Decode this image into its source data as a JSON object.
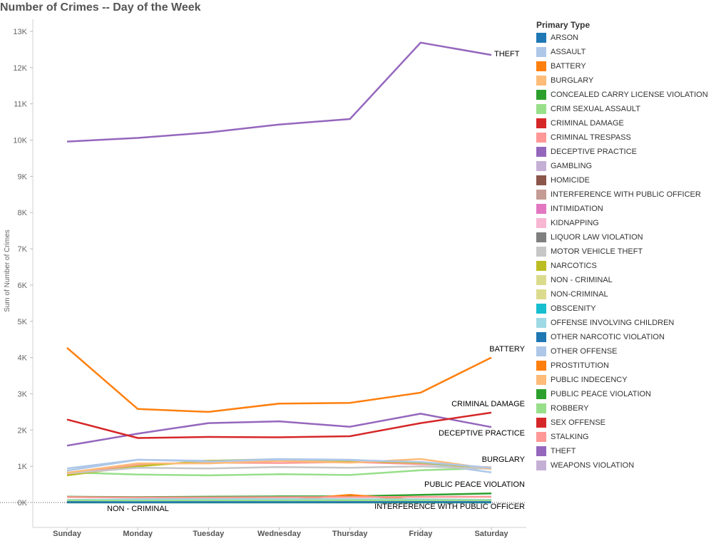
{
  "title": "Number of Crimes -- Day of the Week",
  "legend_title": "Primary Type",
  "chart_data": {
    "type": "line",
    "title": "Number of Crimes -- Day of the Week",
    "xlabel": "",
    "ylabel": "Sum of Number of Crimes",
    "ylim": [
      0,
      13000
    ],
    "yticks": [
      0,
      1000,
      2000,
      3000,
      4000,
      5000,
      6000,
      7000,
      8000,
      9000,
      10000,
      11000,
      12000,
      13000
    ],
    "ytick_labels": [
      "0K",
      "1K",
      "2K",
      "3K",
      "4K",
      "5K",
      "6K",
      "7K",
      "8K",
      "9K",
      "10K",
      "11K",
      "12K",
      "13K"
    ],
    "categories": [
      "Sunday",
      "Monday",
      "Tuesday",
      "Wednesday",
      "Thursday",
      "Friday",
      "Saturday"
    ],
    "grid": false,
    "legend_position": "right",
    "series": [
      {
        "name": "ARSON",
        "color": "#1f77b4",
        "values": [
          10,
          8,
          9,
          10,
          10,
          11,
          9
        ]
      },
      {
        "name": "ASSAULT",
        "color": "#aec7e8",
        "values": [
          940,
          1180,
          1130,
          1190,
          1170,
          1120,
          960
        ]
      },
      {
        "name": "BATTERY",
        "color": "#ff7f0e",
        "values": [
          4270,
          2580,
          2500,
          2730,
          2750,
          3030,
          4000
        ]
      },
      {
        "name": "BURGLARY",
        "color": "#ffbb78",
        "values": [
          820,
          1080,
          1080,
          1150,
          1100,
          1200,
          930
        ]
      },
      {
        "name": "CONCEALED CARRY LICENSE VIOLATION",
        "color": "#2ca02c",
        "values": [
          5,
          4,
          5,
          5,
          5,
          5,
          5
        ]
      },
      {
        "name": "CRIM SEXUAL ASSAULT",
        "color": "#98df8a",
        "values": [
          60,
          50,
          55,
          55,
          60,
          60,
          65
        ]
      },
      {
        "name": "CRIMINAL DAMAGE",
        "color": "#d62728",
        "values": [
          2290,
          1780,
          1810,
          1800,
          1830,
          2190,
          2480
        ]
      },
      {
        "name": "CRIMINAL TRESPASS",
        "color": "#ff9896",
        "values": [
          150,
          140,
          140,
          145,
          150,
          155,
          160
        ]
      },
      {
        "name": "DECEPTIVE PRACTICE",
        "color": "#9467bd",
        "values": [
          1570,
          1900,
          2190,
          2240,
          2090,
          2450,
          2080
        ]
      },
      {
        "name": "GAMBLING",
        "color": "#c5b0d5",
        "values": [
          10,
          8,
          8,
          9,
          10,
          12,
          12
        ]
      },
      {
        "name": "HOMICIDE",
        "color": "#8c564b",
        "values": [
          15,
          10,
          10,
          10,
          10,
          12,
          15
        ]
      },
      {
        "name": "INTERFERENCE WITH PUBLIC OFFICER",
        "color": "#c49c94",
        "values": [
          40,
          45,
          45,
          48,
          48,
          50,
          45
        ]
      },
      {
        "name": "INTIMIDATION",
        "color": "#e377c2",
        "values": [
          5,
          6,
          6,
          6,
          6,
          6,
          5
        ]
      },
      {
        "name": "KIDNAPPING",
        "color": "#f7b6d2",
        "values": [
          8,
          8,
          8,
          8,
          8,
          8,
          8
        ]
      },
      {
        "name": "LIQUOR LAW VIOLATION",
        "color": "#7f7f7f",
        "values": [
          30,
          20,
          20,
          22,
          25,
          40,
          45
        ]
      },
      {
        "name": "MOTOR VEHICLE THEFT",
        "color": "#c7c7c7",
        "values": [
          800,
          960,
          940,
          980,
          960,
          1000,
          930
        ]
      },
      {
        "name": "NARCOTICS",
        "color": "#bcbd22",
        "values": [
          750,
          1000,
          1150,
          1180,
          1150,
          1100,
          950
        ]
      },
      {
        "name": "NON - CRIMINAL",
        "color": "#dbdb8d",
        "values": [
          1,
          1,
          1,
          1,
          1,
          1,
          1
        ]
      },
      {
        "name": "NON-CRIMINAL",
        "color": "#dbdb8d",
        "values": [
          3,
          3,
          3,
          3,
          3,
          3,
          3
        ]
      },
      {
        "name": "OBSCENITY",
        "color": "#17becf",
        "values": [
          2,
          2,
          2,
          2,
          2,
          2,
          2
        ]
      },
      {
        "name": "OFFENSE INVOLVING CHILDREN",
        "color": "#9edae5",
        "values": [
          70,
          90,
          95,
          95,
          90,
          90,
          75
        ]
      },
      {
        "name": "OTHER NARCOTIC VIOLATION",
        "color": "#1f77b4",
        "values": [
          1,
          1,
          1,
          1,
          1,
          1,
          1
        ]
      },
      {
        "name": "OTHER OFFENSE",
        "color": "#aec7e8",
        "values": [
          880,
          1180,
          1150,
          1200,
          1180,
          1100,
          830
        ]
      },
      {
        "name": "PROSTITUTION",
        "color": "#ff7f0e",
        "values": [
          20,
          40,
          50,
          50,
          210,
          60,
          40
        ]
      },
      {
        "name": "PUBLIC INDECENCY",
        "color": "#ffbb78",
        "values": [
          2,
          2,
          2,
          2,
          2,
          2,
          2
        ]
      },
      {
        "name": "PUBLIC PEACE VIOLATION",
        "color": "#2ca02c",
        "values": [
          160,
          150,
          160,
          170,
          170,
          210,
          250
        ]
      },
      {
        "name": "ROBBERY",
        "color": "#98df8a",
        "values": [
          830,
          770,
          750,
          780,
          760,
          890,
          950
        ]
      },
      {
        "name": "SEX OFFENSE",
        "color": "#d62728",
        "values": [
          40,
          35,
          35,
          38,
          40,
          40,
          40
        ]
      },
      {
        "name": "STALKING",
        "color": "#ff9896",
        "values": [
          790,
          1050,
          1100,
          1090,
          1120,
          1060,
          970
        ]
      },
      {
        "name": "THEFT",
        "color": "#9467bd",
        "values": [
          9960,
          10060,
          10210,
          10430,
          10580,
          12690,
          12350
        ]
      },
      {
        "name": "WEAPONS VIOLATION",
        "color": "#c5b0d5",
        "values": [
          60,
          55,
          55,
          60,
          60,
          65,
          70
        ]
      }
    ],
    "annotations": [
      {
        "text": "THEFT",
        "series": "THEFT"
      },
      {
        "text": "BATTERY",
        "series": "BATTERY"
      },
      {
        "text": "CRIMINAL DAMAGE",
        "series": "CRIMINAL DAMAGE"
      },
      {
        "text": "DECEPTIVE PRACTICE",
        "series": "DECEPTIVE PRACTICE"
      },
      {
        "text": "BURGLARY",
        "series": "BURGLARY"
      },
      {
        "text": "PUBLIC PEACE VIOLATION",
        "series": "PUBLIC PEACE VIOLATION"
      },
      {
        "text": "INTERFERENCE WITH PUBLIC OFFICER",
        "series": "INTERFERENCE WITH PUBLIC OFFICER"
      },
      {
        "text": "NON - CRIMINAL",
        "series": "NON - CRIMINAL"
      }
    ]
  }
}
